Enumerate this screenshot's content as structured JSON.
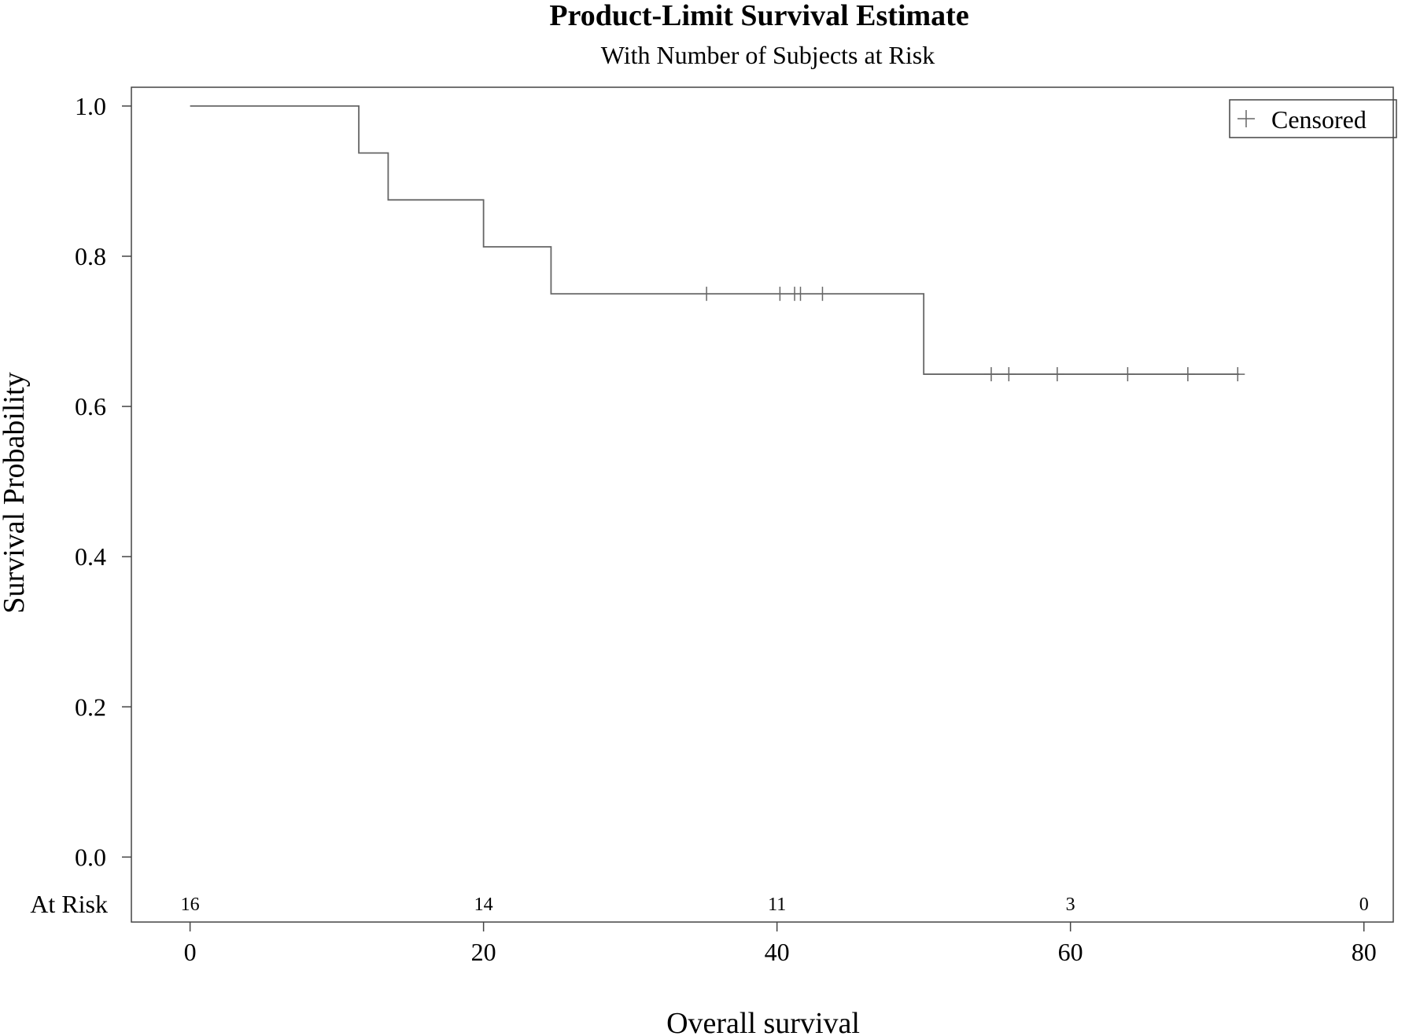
{
  "chart_data": {
    "type": "line",
    "title": "Product-Limit Survival Estimate",
    "subtitle": "With Number of Subjects at Risk",
    "xlabel": "Overall survival",
    "ylabel": "Survival Probability",
    "xlim": [
      -4,
      82
    ],
    "ylim": [
      -0.0865,
      1.025
    ],
    "xticks": [
      0,
      20,
      40,
      60,
      80
    ],
    "xtick_labels": [
      "0",
      "20",
      "40",
      "60",
      "80"
    ],
    "yticks": [
      0.0,
      0.2,
      0.4,
      0.6,
      0.8,
      1.0
    ],
    "ytick_labels": [
      "0.0",
      "0.2",
      "0.4",
      "0.6",
      "0.8",
      "1.0"
    ],
    "series": [
      {
        "step": "post",
        "x": [
          0,
          11.5,
          13.5,
          20,
          24.6,
          50,
          71.5
        ],
        "y": [
          1.0,
          0.9375,
          0.875,
          0.8125,
          0.75,
          0.6429,
          0.6429
        ]
      }
    ],
    "censored": {
      "x": [
        35.2,
        40.2,
        41.2,
        41.6,
        43.1,
        54.6,
        55.8,
        59.1,
        63.9,
        68,
        71.4
      ],
      "y": [
        0.75,
        0.75,
        0.75,
        0.75,
        0.75,
        0.6429,
        0.6429,
        0.6429,
        0.6429,
        0.6429,
        0.6429
      ]
    },
    "legend": {
      "label": "Censored",
      "position": "top-right"
    },
    "at_risk": {
      "label": "At Risk",
      "x": [
        0,
        20,
        40,
        60,
        80
      ],
      "counts": [
        "16",
        "14",
        "11",
        "3",
        "0"
      ]
    },
    "grid": false,
    "colors": {
      "line": "#666666",
      "frame": "#444444",
      "text": "#000000"
    }
  }
}
